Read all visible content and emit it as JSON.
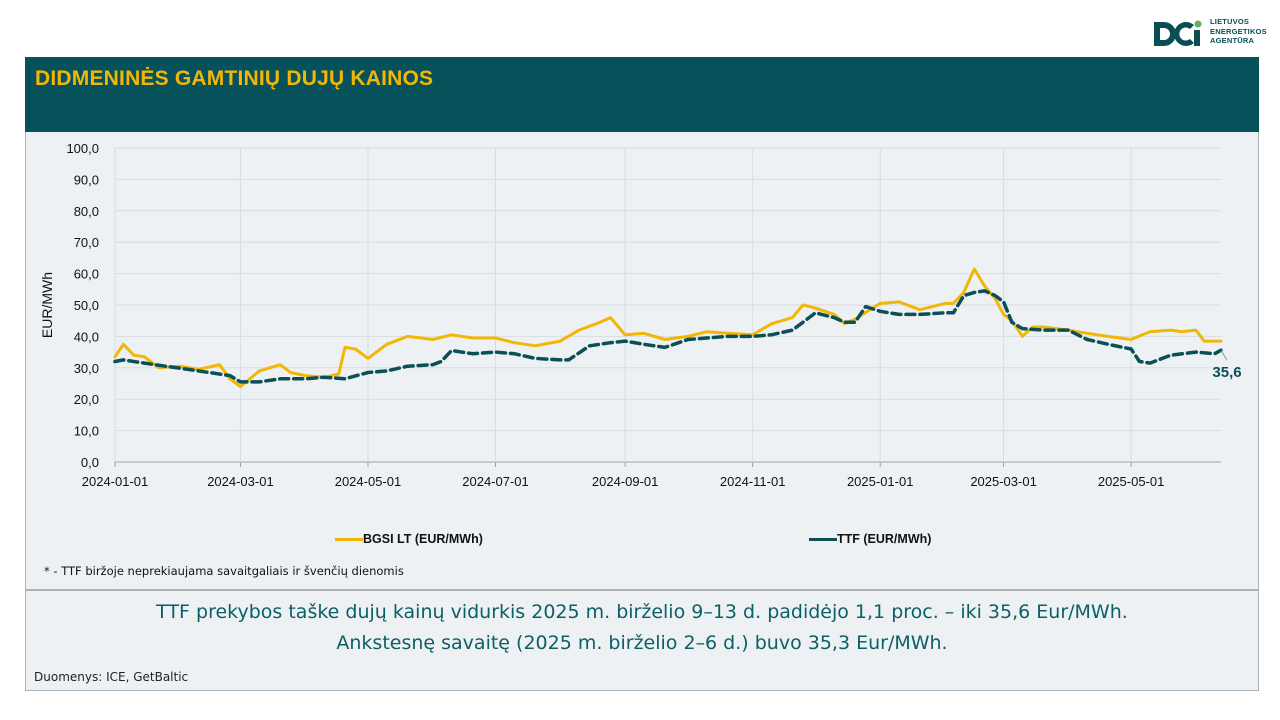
{
  "logo": {
    "lines": [
      "LIETUVOS",
      "ENERGETIKOS",
      "AGENTŪRA"
    ],
    "icon": "lea-logo-icon"
  },
  "header": {
    "title": "DIDMENINĖS GAMTINIŲ DUJŲ KAINOS"
  },
  "colors": {
    "header_bg": "#07525a",
    "title": "#f2b705",
    "bgsi": "#f2b705",
    "ttf": "#0b4f57",
    "panel": "#eef1f4"
  },
  "chart_data": {
    "type": "line",
    "ylabel": "EUR/MWh",
    "xlabel": "",
    "ylim": [
      0,
      100
    ],
    "xlim": [
      "2024-01-01",
      "2025-06-13"
    ],
    "y_ticks": [
      "0,0",
      "10,0",
      "20,0",
      "30,0",
      "40,0",
      "50,0",
      "60,0",
      "70,0",
      "80,0",
      "90,0",
      "100,0"
    ],
    "x_ticks": [
      "2024-01-01",
      "2024-03-01",
      "2024-05-01",
      "2024-07-01",
      "2024-09-01",
      "2024-11-01",
      "2025-01-01",
      "2025-03-01",
      "2025-05-01"
    ],
    "grid": "vertical and horizontal",
    "legend_position": "bottom",
    "series": [
      {
        "name": "BGSI LT (EUR/MWh)",
        "style": "solid",
        "x": [
          "2024-01-01",
          "2024-01-05",
          "2024-01-10",
          "2024-01-15",
          "2024-01-22",
          "2024-02-01",
          "2024-02-10",
          "2024-02-20",
          "2024-02-25",
          "2024-03-01",
          "2024-03-10",
          "2024-03-20",
          "2024-03-25",
          "2024-04-01",
          "2024-04-10",
          "2024-04-17",
          "2024-04-20",
          "2024-04-25",
          "2024-05-01",
          "2024-05-10",
          "2024-05-20",
          "2024-06-01",
          "2024-06-10",
          "2024-06-20",
          "2024-07-01",
          "2024-07-10",
          "2024-07-20",
          "2024-08-01",
          "2024-08-10",
          "2024-08-20",
          "2024-08-25",
          "2024-09-01",
          "2024-09-10",
          "2024-09-20",
          "2024-10-01",
          "2024-10-10",
          "2024-10-20",
          "2024-11-01",
          "2024-11-10",
          "2024-11-20",
          "2024-11-25",
          "2024-12-01",
          "2024-12-10",
          "2024-12-15",
          "2024-12-20",
          "2025-01-01",
          "2025-01-10",
          "2025-01-20",
          "2025-02-01",
          "2025-02-05",
          "2025-02-10",
          "2025-02-15",
          "2025-02-20",
          "2025-02-25",
          "2025-03-01",
          "2025-03-05",
          "2025-03-10",
          "2025-03-15",
          "2025-03-20",
          "2025-04-01",
          "2025-04-10",
          "2025-04-20",
          "2025-05-01",
          "2025-05-10",
          "2025-05-20",
          "2025-05-25",
          "2025-06-01",
          "2025-06-05",
          "2025-06-13"
        ],
        "values": [
          33.5,
          37.5,
          34.0,
          33.5,
          30.0,
          30.5,
          29.5,
          31.0,
          26.5,
          24.0,
          29.0,
          31.0,
          28.5,
          27.5,
          27.0,
          28.0,
          36.5,
          36.0,
          33.0,
          37.5,
          40.0,
          39.0,
          40.5,
          39.5,
          39.5,
          38.0,
          37.0,
          38.5,
          42.0,
          44.5,
          46.0,
          40.5,
          41.0,
          39.0,
          40.0,
          41.5,
          41.0,
          40.5,
          44.0,
          46.0,
          50.0,
          49.0,
          47.0,
          44.0,
          45.5,
          50.5,
          51.0,
          48.5,
          50.5,
          50.5,
          54.0,
          61.5,
          56.0,
          52.0,
          47.0,
          45.0,
          40.0,
          43.0,
          43.0,
          42.0,
          41.0,
          40.0,
          39.0,
          41.5,
          42.0,
          41.5,
          42.0,
          38.5,
          38.5
        ]
      },
      {
        "name": "TTF (EUR/MWh)",
        "style": "dashed",
        "x": [
          "2024-01-01",
          "2024-01-05",
          "2024-01-15",
          "2024-01-25",
          "2024-02-05",
          "2024-02-15",
          "2024-02-25",
          "2024-03-01",
          "2024-03-10",
          "2024-03-20",
          "2024-04-01",
          "2024-04-10",
          "2024-04-20",
          "2024-05-01",
          "2024-05-10",
          "2024-05-20",
          "2024-06-01",
          "2024-06-05",
          "2024-06-10",
          "2024-06-20",
          "2024-07-01",
          "2024-07-10",
          "2024-07-20",
          "2024-08-01",
          "2024-08-05",
          "2024-08-15",
          "2024-08-25",
          "2024-09-01",
          "2024-09-10",
          "2024-09-20",
          "2024-10-01",
          "2024-10-10",
          "2024-10-20",
          "2024-11-01",
          "2024-11-10",
          "2024-11-20",
          "2024-11-25",
          "2024-12-01",
          "2024-12-10",
          "2024-12-15",
          "2024-12-20",
          "2024-12-25",
          "2025-01-01",
          "2025-01-10",
          "2025-01-20",
          "2025-02-01",
          "2025-02-05",
          "2025-02-10",
          "2025-02-15",
          "2025-02-20",
          "2025-02-25",
          "2025-03-01",
          "2025-03-05",
          "2025-03-10",
          "2025-03-20",
          "2025-04-01",
          "2025-04-10",
          "2025-04-20",
          "2025-05-01",
          "2025-05-05",
          "2025-05-10",
          "2025-05-20",
          "2025-06-01",
          "2025-06-10",
          "2025-06-13"
        ],
        "values": [
          32.0,
          32.5,
          31.5,
          30.5,
          29.5,
          28.5,
          27.5,
          25.5,
          25.5,
          26.5,
          26.5,
          27.0,
          26.5,
          28.5,
          29.0,
          30.5,
          31.0,
          32.0,
          35.5,
          34.5,
          35.0,
          34.5,
          33.0,
          32.5,
          32.5,
          37.0,
          38.0,
          38.5,
          37.5,
          36.5,
          39.0,
          39.5,
          40.0,
          40.0,
          40.5,
          42.0,
          44.5,
          47.5,
          46.0,
          44.5,
          44.5,
          49.5,
          48.0,
          47.0,
          47.0,
          47.5,
          47.5,
          53.0,
          54.0,
          54.5,
          53.0,
          51.0,
          44.5,
          42.5,
          42.0,
          42.0,
          39.0,
          37.5,
          36.0,
          32.0,
          31.5,
          34.0,
          35.0,
          34.5,
          35.6
        ]
      }
    ],
    "annotations": [
      {
        "text": "35,6"
      }
    ]
  },
  "footnote": "* - TTF biržoje neprekiaujama savaitgaliais ir švenčių dienomis",
  "summary": [
    "TTF prekybos taške dujų kainų vidurkis 2025 m. birželio 9–13 d. padidėjo 1,1 proc. – iki 35,6 Eur/MWh.",
    "Ankstesnę savaitę (2025 m. birželio 2–6 d.) buvo 35,3 Eur/MWh."
  ],
  "source": "Duomenys: ICE, GetBaltic"
}
